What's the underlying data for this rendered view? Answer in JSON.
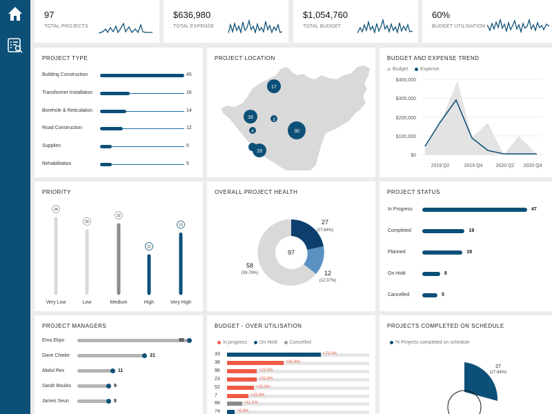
{
  "sidebar": {
    "home_icon": "home-icon",
    "report_icon": "report-search-icon"
  },
  "kpis": [
    {
      "value": "97",
      "label": "TOTAL PROJECTS"
    },
    {
      "value": "$636,980",
      "label": "TOTAL EXPENSE"
    },
    {
      "value": "$1,054,760",
      "label": "TOTAL BUDGET"
    },
    {
      "value": "60%",
      "label": "BUDGET UTILISATION"
    }
  ],
  "project_type": {
    "title": "PROJECT TYPE",
    "items": [
      {
        "label": "Building Construction",
        "value": "45"
      },
      {
        "label": "Transformer Installation",
        "value": "16"
      },
      {
        "label": "Borehole & Reticulation",
        "value": "14"
      },
      {
        "label": "Road Construction",
        "value": "12"
      },
      {
        "label": "Supplies",
        "value": "5"
      },
      {
        "label": "Rehabilitation",
        "value": "5"
      }
    ]
  },
  "project_location": {
    "title": "PROJECT LOCATION",
    "bubbles": [
      {
        "label": "17"
      },
      {
        "label": "16"
      },
      {
        "label": "3"
      },
      {
        "label": "4"
      },
      {
        "label": "30"
      },
      {
        "label": ""
      },
      {
        "label": "19"
      }
    ]
  },
  "budget_trend": {
    "title": "BUDGET AND EXPENSE TREND",
    "legend_budget": "Budget",
    "legend_expense": "Expense",
    "yticks": [
      "$400,000",
      "$300,000",
      "$200,000",
      "$100,000",
      "$0"
    ],
    "xticks": [
      "2019 Q2",
      "2019 Q4",
      "2020 Q2",
      "2020 Q4"
    ]
  },
  "priority": {
    "title": "PRIORITY",
    "items": [
      {
        "label": "Very Low",
        "value": "24"
      },
      {
        "label": "Low",
        "value": "20"
      },
      {
        "label": "Medium",
        "value": "22"
      },
      {
        "label": "High",
        "value": "12"
      },
      {
        "label": "Very High",
        "value": "19"
      }
    ]
  },
  "health": {
    "title": "OVERALL PROJECT HEALTH",
    "center": "97",
    "segments": [
      {
        "value": "27",
        "pct": "(27.84%)"
      },
      {
        "value": "12",
        "pct": "(12.37%)"
      },
      {
        "value": "58",
        "pct": "(59.79%)"
      }
    ]
  },
  "status": {
    "title": "PROJECT STATUS",
    "items": [
      {
        "label": "In Progress",
        "value": "47"
      },
      {
        "label": "Completed",
        "value": "19"
      },
      {
        "label": "Planned",
        "value": "18"
      },
      {
        "label": "On Hold",
        "value": "8"
      },
      {
        "label": "Cancelled",
        "value": "5"
      }
    ]
  },
  "managers": {
    "title": "PROJECT MANAGERS",
    "items": [
      {
        "label": "Ema Ekpo",
        "value": "35"
      },
      {
        "label": "Dave Chieke",
        "value": "21"
      },
      {
        "label": "Abdul Rex",
        "value": "11"
      },
      {
        "label": "Sarah Boulos",
        "value": "9"
      },
      {
        "label": "James Seun",
        "value": "8"
      }
    ]
  },
  "over_util": {
    "title": "BUDGET - OVER UTILISATION",
    "legend": [
      "In progress",
      "On Hold",
      "Cancelled"
    ],
    "rows": [
      {
        "id": "33",
        "pct": "+70.0%",
        "color": "#0d5077",
        "frac": 0.66
      },
      {
        "id": "38",
        "pct": "+42.8%",
        "color": "#ef5a46",
        "frac": 0.4
      },
      {
        "id": "96",
        "pct": "+22.0%",
        "color": "#ef5a46",
        "frac": 0.21
      },
      {
        "id": "23",
        "pct": "+22.0%",
        "color": "#ef5a46",
        "frac": 0.21
      },
      {
        "id": "52",
        "pct": "+20.0%",
        "color": "#ef5a46",
        "frac": 0.19
      },
      {
        "id": "7",
        "pct": "+15.8%",
        "color": "#ef5a46",
        "frac": 0.15
      },
      {
        "id": "66",
        "pct": "+11.1%",
        "color": "#8a8a8a",
        "frac": 0.105
      },
      {
        "id": "74",
        "pct": "+5.6%",
        "color": "#0d5077",
        "frac": 0.055
      }
    ]
  },
  "on_schedule": {
    "title": "PROJECTS COMPLETED ON SCHEDULE",
    "legend": "% Projects completed on schedule",
    "value": "27",
    "pct": "(27.84%)"
  },
  "colors": {
    "primary": "#0d5077",
    "light": "#d9d9d9",
    "mid": "#5b91c2",
    "red": "#ef5a46",
    "grey": "#8a8a8a"
  }
}
